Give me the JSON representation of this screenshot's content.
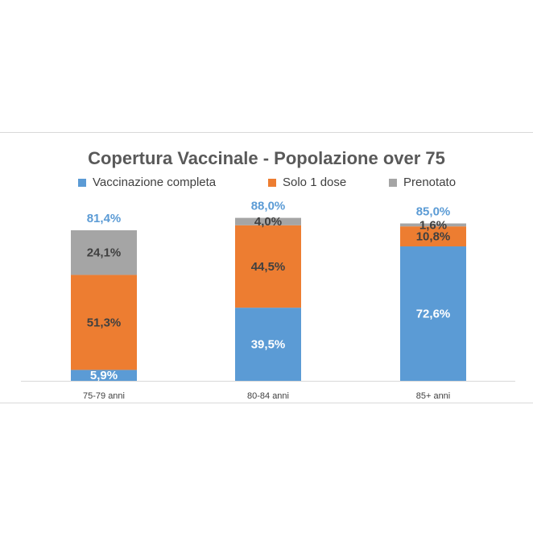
{
  "chart_data": {
    "type": "bar",
    "stacked": true,
    "title": "Copertura Vaccinale - Popolazione over 75",
    "categories": [
      "75-79 anni",
      "80-84 anni",
      "85+ anni"
    ],
    "series": [
      {
        "name": "Vaccinazione completa",
        "color": "#5b9bd5",
        "values": [
          5.9,
          39.5,
          72.6
        ],
        "labels": [
          "5,9%",
          "39,5%",
          "72,6%"
        ],
        "label_color": "#ffffff"
      },
      {
        "name": "Solo 1 dose",
        "color": "#ed7d31",
        "values": [
          51.3,
          44.5,
          10.8
        ],
        "labels": [
          "51,3%",
          "44,5%",
          "10,8%"
        ],
        "label_color": "#404040"
      },
      {
        "name": "Prenotato",
        "color": "#a5a5a5",
        "values": [
          24.1,
          4.0,
          1.6
        ],
        "labels": [
          "24,1%",
          "4,0%",
          "1,6%"
        ],
        "label_color": "#404040"
      }
    ],
    "totals": [
      81.4,
      88.0,
      85.0
    ],
    "total_labels": [
      "81,4%",
      "88,0%",
      "85,0%"
    ],
    "total_color": "#5b9bd5",
    "legend_position": "top",
    "grid": false,
    "ylim": [
      0,
      100
    ]
  }
}
